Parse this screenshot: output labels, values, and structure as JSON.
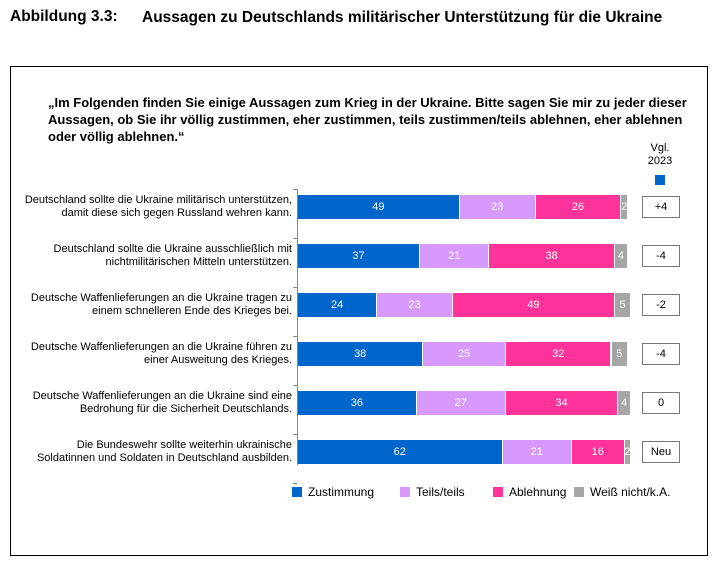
{
  "figure_number": "Abbildung 3.3:",
  "title": "Aussagen zu Deutschlands militärischer Unterstützung für die Ukraine",
  "chart_data": {
    "type": "bar",
    "orientation": "horizontal",
    "stacked": true,
    "question": "„Im Folgenden finden Sie einige Aussagen zum Krieg in der Ukraine. Bitte sagen Sie mir zu jeder dieser Aussagen, ob Sie ihr völlig zustimmen, eher zustimmen, teils zustimmen/teils ablehnen, eher ablehnen oder völlig ablehnen.“",
    "comparison_header": "Vgl. 2023",
    "categories": [
      "Deutschland sollte die Ukraine militärisch unterstützen, damit diese sich gegen Russland wehren kann.",
      "Deutschland sollte die Ukraine ausschließlich mit nichtmilitärischen Mitteln unterstützen.",
      "Deutsche Waffenlieferungen an die Ukraine tragen zu einem schnelleren Ende des Krieges bei.",
      "Deutsche Waffenlieferungen an die Ukraine führen zu einer Ausweitung des Krieges.",
      "Deutsche Waffenlieferungen an die Ukraine sind eine Bedrohung für die Sicherheit Deutschlands.",
      "Die Bundeswehr sollte weiterhin ukrainische Soldatinnen und Soldaten in Deutschland ausbilden."
    ],
    "series": [
      {
        "name": "Zustimmung",
        "color": "#0066CC",
        "values": [
          49,
          37,
          24,
          38,
          36,
          62
        ]
      },
      {
        "name": "Teils/teils",
        "color": "#D899FF",
        "values": [
          23,
          21,
          23,
          25,
          27,
          21
        ]
      },
      {
        "name": "Ablehnung",
        "color": "#FF3399",
        "values": [
          26,
          38,
          49,
          32,
          34,
          16
        ]
      },
      {
        "name": "Weiß nicht/k.A.",
        "color": "#A6A6A6",
        "values": [
          2,
          4,
          5,
          5,
          4,
          2
        ]
      }
    ],
    "comparison_2023": [
      "+4",
      "-4",
      "-2",
      "-4",
      "0",
      "Neu"
    ],
    "xlim": [
      0,
      100
    ],
    "legend_position": "bottom"
  }
}
